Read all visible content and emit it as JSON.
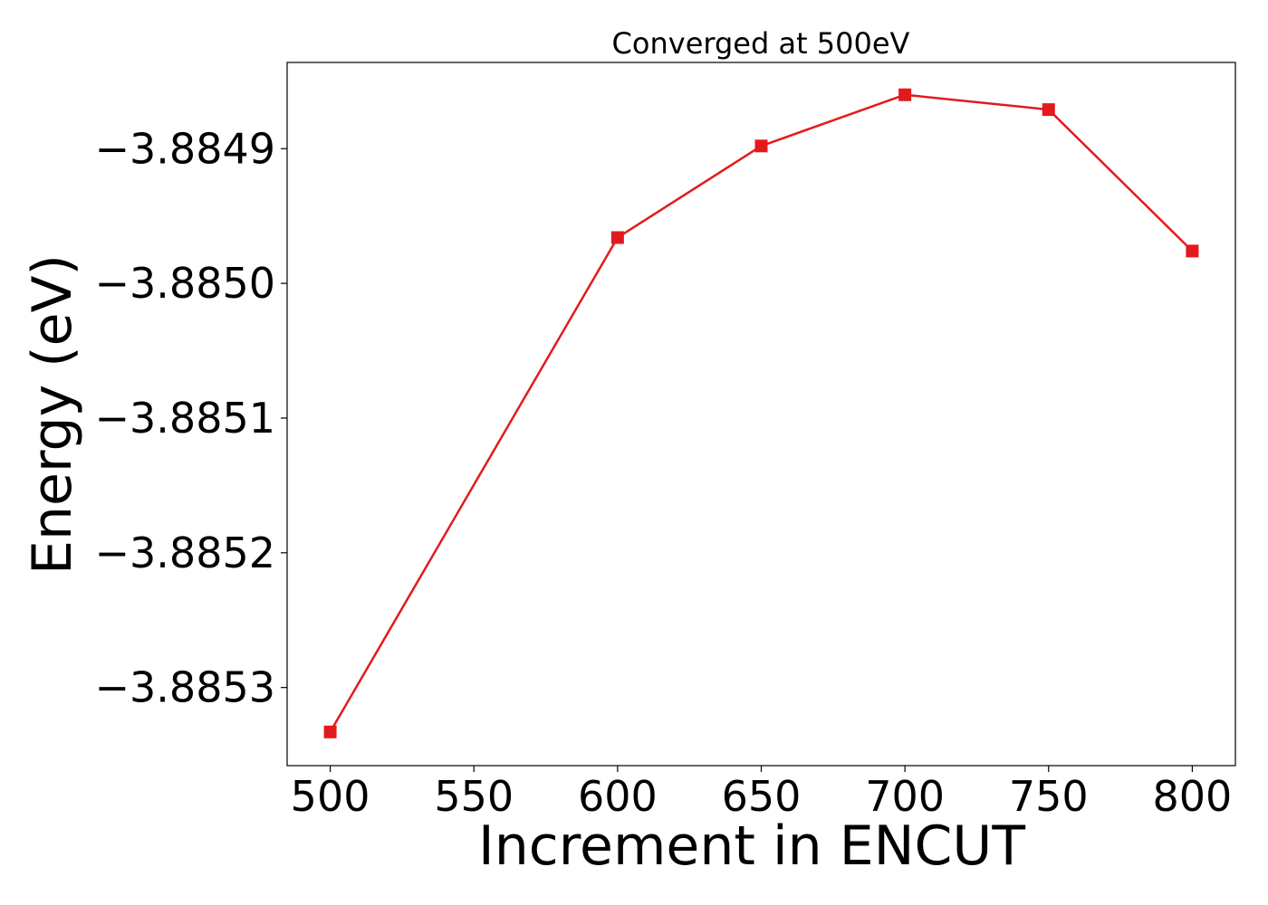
{
  "chart_data": {
    "type": "line",
    "title": "Converged at 500eV",
    "xlabel": "Increment in ENCUT",
    "ylabel": "Energy (eV)",
    "x": [
      500,
      600,
      650,
      700,
      750,
      800
    ],
    "series": [
      {
        "values": [
          -3.885333,
          -3.884966,
          -3.884898,
          -3.88486,
          -3.884871,
          -3.884976
        ],
        "color": "#e31a1c",
        "marker": "square"
      }
    ],
    "xlim": [
      485,
      815
    ],
    "ylim": [
      -3.885358,
      -3.884836
    ],
    "xticks": [
      "500",
      "550",
      "600",
      "650",
      "700",
      "750",
      "800"
    ],
    "yticks": [
      "−3.8849",
      "−3.8850",
      "−3.8851",
      "−3.8852",
      "−3.8853"
    ],
    "grid": false,
    "legend": "none"
  }
}
